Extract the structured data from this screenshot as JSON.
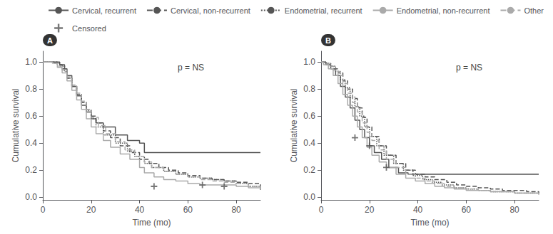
{
  "chart_data": [
    {
      "type": "step",
      "title": "A",
      "xlabel": "Time (mo)",
      "ylabel": "Cumulative survival",
      "annotation": "p = NS",
      "xlim": [
        0,
        90
      ],
      "xticks": [
        0,
        20,
        40,
        60,
        80
      ],
      "ylim": [
        -0.02,
        1.08
      ],
      "yticks": [
        {
          "value": 0.0,
          "label": "0.0"
        },
        0.2,
        0.4,
        0.6,
        0.8,
        {
          "value": 1.0,
          "label": "1.0"
        }
      ],
      "grid": false,
      "series": [
        {
          "name": "Cervical, recurrent",
          "color": "#555555",
          "line_style": "solid",
          "x": [
            0,
            1,
            3,
            5,
            7,
            9,
            10,
            12,
            14,
            16,
            18,
            20,
            22,
            25,
            30,
            35,
            40,
            42,
            45,
            50,
            55,
            60,
            65,
            70,
            75,
            80,
            85,
            90
          ],
          "values": [
            1.0,
            1.0,
            1.0,
            1.0,
            0.98,
            0.95,
            0.9,
            0.82,
            0.75,
            0.68,
            0.63,
            0.58,
            0.55,
            0.52,
            0.46,
            0.42,
            0.4,
            0.33,
            0.33,
            0.33,
            0.33,
            0.33,
            0.33,
            0.33,
            0.33,
            0.33,
            0.33,
            0.33
          ]
        },
        {
          "name": "Cervical, non-recurrent",
          "color": "#555555",
          "line_style": "dashed",
          "x": [
            0,
            2,
            4,
            6,
            8,
            10,
            12,
            14,
            16,
            18,
            20,
            22,
            25,
            28,
            32,
            36,
            40,
            44,
            48,
            52,
            56,
            60,
            65,
            70,
            75,
            80,
            85,
            90
          ],
          "values": [
            1.0,
            1.0,
            1.0,
            0.98,
            0.95,
            0.88,
            0.82,
            0.76,
            0.7,
            0.65,
            0.6,
            0.55,
            0.49,
            0.44,
            0.38,
            0.33,
            0.28,
            0.25,
            0.22,
            0.2,
            0.18,
            0.16,
            0.14,
            0.13,
            0.12,
            0.11,
            0.1,
            0.08
          ]
        },
        {
          "name": "Endometrial, recurrent",
          "color": "#555555",
          "line_style": "dotted",
          "x": [
            0,
            1,
            3,
            5,
            7,
            9,
            10,
            12,
            14,
            16,
            18,
            20,
            22,
            25,
            30,
            35,
            38,
            42,
            45,
            50,
            55,
            60,
            65,
            70,
            75,
            80,
            85,
            90
          ],
          "values": [
            1.0,
            1.0,
            1.0,
            0.99,
            0.97,
            0.93,
            0.88,
            0.82,
            0.76,
            0.7,
            0.64,
            0.58,
            0.52,
            0.46,
            0.4,
            0.34,
            0.3,
            0.25,
            0.22,
            0.19,
            0.17,
            0.15,
            0.14,
            0.13,
            0.12,
            0.1,
            0.08,
            0.05
          ]
        },
        {
          "name": "Endometrial, non-recurrent",
          "color": "#aaaaaa",
          "line_style": "solid",
          "x": [
            0,
            2,
            4,
            6,
            8,
            10,
            12,
            14,
            16,
            18,
            20,
            22,
            25,
            28,
            32,
            36,
            40,
            42,
            46,
            50,
            55,
            60,
            65,
            70,
            75,
            80,
            85,
            90
          ],
          "values": [
            1.0,
            1.0,
            0.99,
            0.96,
            0.92,
            0.86,
            0.79,
            0.72,
            0.65,
            0.58,
            0.52,
            0.47,
            0.42,
            0.37,
            0.32,
            0.28,
            0.22,
            0.18,
            0.15,
            0.13,
            0.12,
            0.1,
            0.09,
            0.09,
            0.09,
            0.08,
            0.07,
            0.06
          ]
        },
        {
          "name": "Other",
          "color": "#aaaaaa",
          "line_style": "dashed",
          "x": [
            0,
            2,
            4,
            6,
            8,
            10,
            12,
            14,
            16,
            18,
            20,
            23,
            26,
            30,
            34,
            38,
            42,
            45,
            50,
            55,
            60,
            65,
            70,
            75,
            80,
            85,
            90
          ],
          "values": [
            1.0,
            1.0,
            0.99,
            0.97,
            0.94,
            0.89,
            0.83,
            0.77,
            0.71,
            0.65,
            0.59,
            0.53,
            0.47,
            0.41,
            0.35,
            0.3,
            0.26,
            0.22,
            0.19,
            0.17,
            0.15,
            0.13,
            0.12,
            0.11,
            0.1,
            0.08,
            0.05
          ]
        },
        {
          "name": "Censored",
          "type": "scatter",
          "marker": "plus",
          "color": "#555555",
          "x": [
            46,
            66,
            75
          ],
          "values": [
            0.08,
            0.09,
            0.08
          ]
        }
      ]
    },
    {
      "type": "step",
      "title": "B",
      "xlabel": "Time (mo)",
      "ylabel": "Cumulative survival",
      "annotation": "p = NS",
      "xlim": [
        0,
        90
      ],
      "xticks": [
        0,
        20,
        40,
        60,
        80
      ],
      "ylim": [
        -0.02,
        1.08
      ],
      "yticks": [
        {
          "value": 0.0,
          "label": "0.0"
        },
        0.2,
        0.4,
        0.6,
        0.8,
        {
          "value": 1.0,
          "label": "1.0"
        }
      ],
      "grid": false,
      "legend": "upper right",
      "series": [
        {
          "name": "Cervical, recurrent",
          "color": "#555555",
          "line_style": "solid",
          "x": [
            0,
            1,
            2,
            4,
            6,
            8,
            10,
            12,
            14,
            16,
            18,
            20,
            22,
            25,
            28,
            32,
            36,
            40,
            44,
            48,
            52,
            56,
            60,
            64,
            68,
            72,
            76,
            80,
            85,
            90
          ],
          "values": [
            1.0,
            1.0,
            0.98,
            0.95,
            0.9,
            0.82,
            0.74,
            0.66,
            0.57,
            0.5,
            0.44,
            0.38,
            0.33,
            0.28,
            0.22,
            0.18,
            0.17,
            0.17,
            0.17,
            0.17,
            0.17,
            0.17,
            0.17,
            0.17,
            0.17,
            0.17,
            0.17,
            0.17,
            0.17,
            0.17
          ]
        },
        {
          "name": "Cervical, non-recurrent",
          "color": "#555555",
          "line_style": "dashed",
          "x": [
            0,
            1,
            3,
            5,
            7,
            9,
            11,
            13,
            15,
            17,
            19,
            21,
            24,
            27,
            31,
            35,
            39,
            43,
            47,
            52,
            56,
            60,
            65,
            70,
            75,
            80,
            85,
            90
          ],
          "values": [
            1.0,
            0.99,
            0.97,
            0.95,
            0.92,
            0.86,
            0.8,
            0.73,
            0.66,
            0.59,
            0.52,
            0.45,
            0.38,
            0.31,
            0.25,
            0.2,
            0.17,
            0.15,
            0.13,
            0.11,
            0.09,
            0.08,
            0.07,
            0.06,
            0.05,
            0.05,
            0.04,
            0.03
          ]
        },
        {
          "name": "Endometrial, recurrent",
          "color": "#555555",
          "line_style": "dotted",
          "x": [
            0,
            1,
            2,
            4,
            6,
            8,
            10,
            12,
            14,
            16,
            18,
            20,
            23,
            26,
            30,
            34,
            38,
            42,
            46,
            50,
            55,
            60,
            65,
            70,
            75,
            80,
            85,
            90
          ],
          "values": [
            1.0,
            1.0,
            0.99,
            0.97,
            0.93,
            0.87,
            0.81,
            0.74,
            0.67,
            0.6,
            0.52,
            0.45,
            0.38,
            0.31,
            0.25,
            0.2,
            0.16,
            0.13,
            0.11,
            0.09,
            0.07,
            0.06,
            0.05,
            0.04,
            0.04,
            0.03,
            0.03,
            0.02
          ]
        },
        {
          "name": "Endometrial, non-recurrent",
          "color": "#aaaaaa",
          "line_style": "solid",
          "x": [
            0,
            1,
            3,
            5,
            7,
            9,
            11,
            13,
            15,
            17,
            19,
            21,
            24,
            27,
            31,
            35,
            39,
            43,
            47,
            51,
            55,
            60,
            65,
            70,
            75,
            80,
            85,
            90
          ],
          "values": [
            1.0,
            0.98,
            0.95,
            0.9,
            0.84,
            0.76,
            0.68,
            0.6,
            0.52,
            0.44,
            0.37,
            0.31,
            0.26,
            0.22,
            0.17,
            0.14,
            0.12,
            0.1,
            0.08,
            0.07,
            0.06,
            0.05,
            0.05,
            0.04,
            0.04,
            0.03,
            0.03,
            0.02
          ]
        },
        {
          "name": "Other",
          "color": "#aaaaaa",
          "line_style": "dashed",
          "x": [
            0,
            1,
            3,
            5,
            7,
            9,
            11,
            13,
            15,
            17,
            19,
            21,
            24,
            27,
            31,
            35,
            39,
            43,
            47,
            51,
            55,
            60,
            65,
            70,
            75,
            80,
            85,
            90
          ],
          "values": [
            1.0,
            0.99,
            0.97,
            0.94,
            0.9,
            0.84,
            0.77,
            0.7,
            0.63,
            0.55,
            0.48,
            0.42,
            0.35,
            0.28,
            0.22,
            0.17,
            0.14,
            0.12,
            0.1,
            0.08,
            0.07,
            0.06,
            0.05,
            0.04,
            0.04,
            0.03,
            0.03,
            0.02
          ]
        },
        {
          "name": "Censored",
          "type": "scatter",
          "marker": "plus",
          "color": "#555555",
          "x": [
            14,
            20,
            27
          ],
          "values": [
            0.44,
            0.38,
            0.22
          ]
        }
      ]
    }
  ]
}
